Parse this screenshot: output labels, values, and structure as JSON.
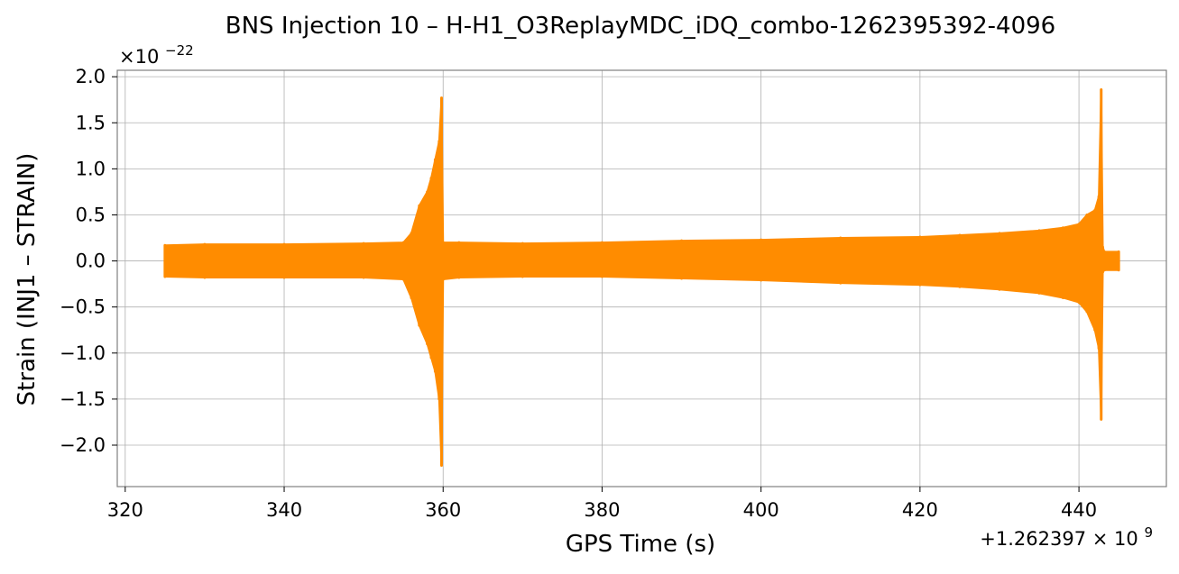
{
  "chart_data": {
    "type": "line",
    "title": "BNS Injection 10 – H-H1_O3ReplayMDC_iDQ_combo-1262395392-4096",
    "xlabel": "GPS Time (s)",
    "ylabel": "Strain (INJ1 – STRAIN)",
    "x_offset_label": "+1.262397 × 10",
    "x_offset_exponent": "9",
    "y_scale_label": "×10",
    "y_scale_exponent": "−22",
    "xlim": [
      319,
      451
    ],
    "ylim": [
      -2.45,
      2.07
    ],
    "x_ticks": [
      320,
      340,
      360,
      380,
      400,
      420,
      440
    ],
    "x_tick_labels": [
      "320",
      "340",
      "360",
      "380",
      "400",
      "420",
      "440"
    ],
    "y_ticks": [
      2.0,
      1.5,
      1.0,
      0.5,
      0.0,
      -0.5,
      -1.0,
      -1.5,
      -2.0
    ],
    "y_tick_labels": [
      "2.0",
      "1.5",
      "1.0",
      "0.5",
      "0.0",
      "−0.5",
      "−1.0",
      "−1.5",
      "−2.0"
    ],
    "grid": true,
    "line_color": "#ff8c00",
    "series": [
      {
        "x": [
          325,
          330,
          340,
          350,
          355,
          356,
          357,
          358,
          358.5,
          359,
          359.5,
          359.8,
          360,
          362,
          370,
          380,
          390,
          400,
          410,
          420,
          425,
          430,
          435,
          438,
          440,
          441,
          442,
          442.5,
          442.8,
          443,
          443.2,
          445
        ],
        "upper": [
          0.17,
          0.18,
          0.18,
          0.19,
          0.2,
          0.3,
          0.6,
          0.75,
          0.9,
          1.1,
          1.3,
          1.77,
          0.2,
          0.2,
          0.19,
          0.2,
          0.22,
          0.23,
          0.25,
          0.26,
          0.28,
          0.3,
          0.33,
          0.36,
          0.4,
          0.5,
          0.55,
          0.7,
          1.86,
          0.15,
          0.1,
          0.1
        ],
        "lower": [
          -0.17,
          -0.18,
          -0.18,
          -0.18,
          -0.2,
          -0.4,
          -0.7,
          -0.9,
          -1.05,
          -1.2,
          -1.5,
          -2.22,
          -0.2,
          -0.18,
          -0.17,
          -0.17,
          -0.19,
          -0.21,
          -0.24,
          -0.26,
          -0.28,
          -0.31,
          -0.35,
          -0.4,
          -0.45,
          -0.55,
          -0.75,
          -0.95,
          -1.72,
          -0.12,
          -0.1,
          -0.1
        ]
      }
    ]
  }
}
